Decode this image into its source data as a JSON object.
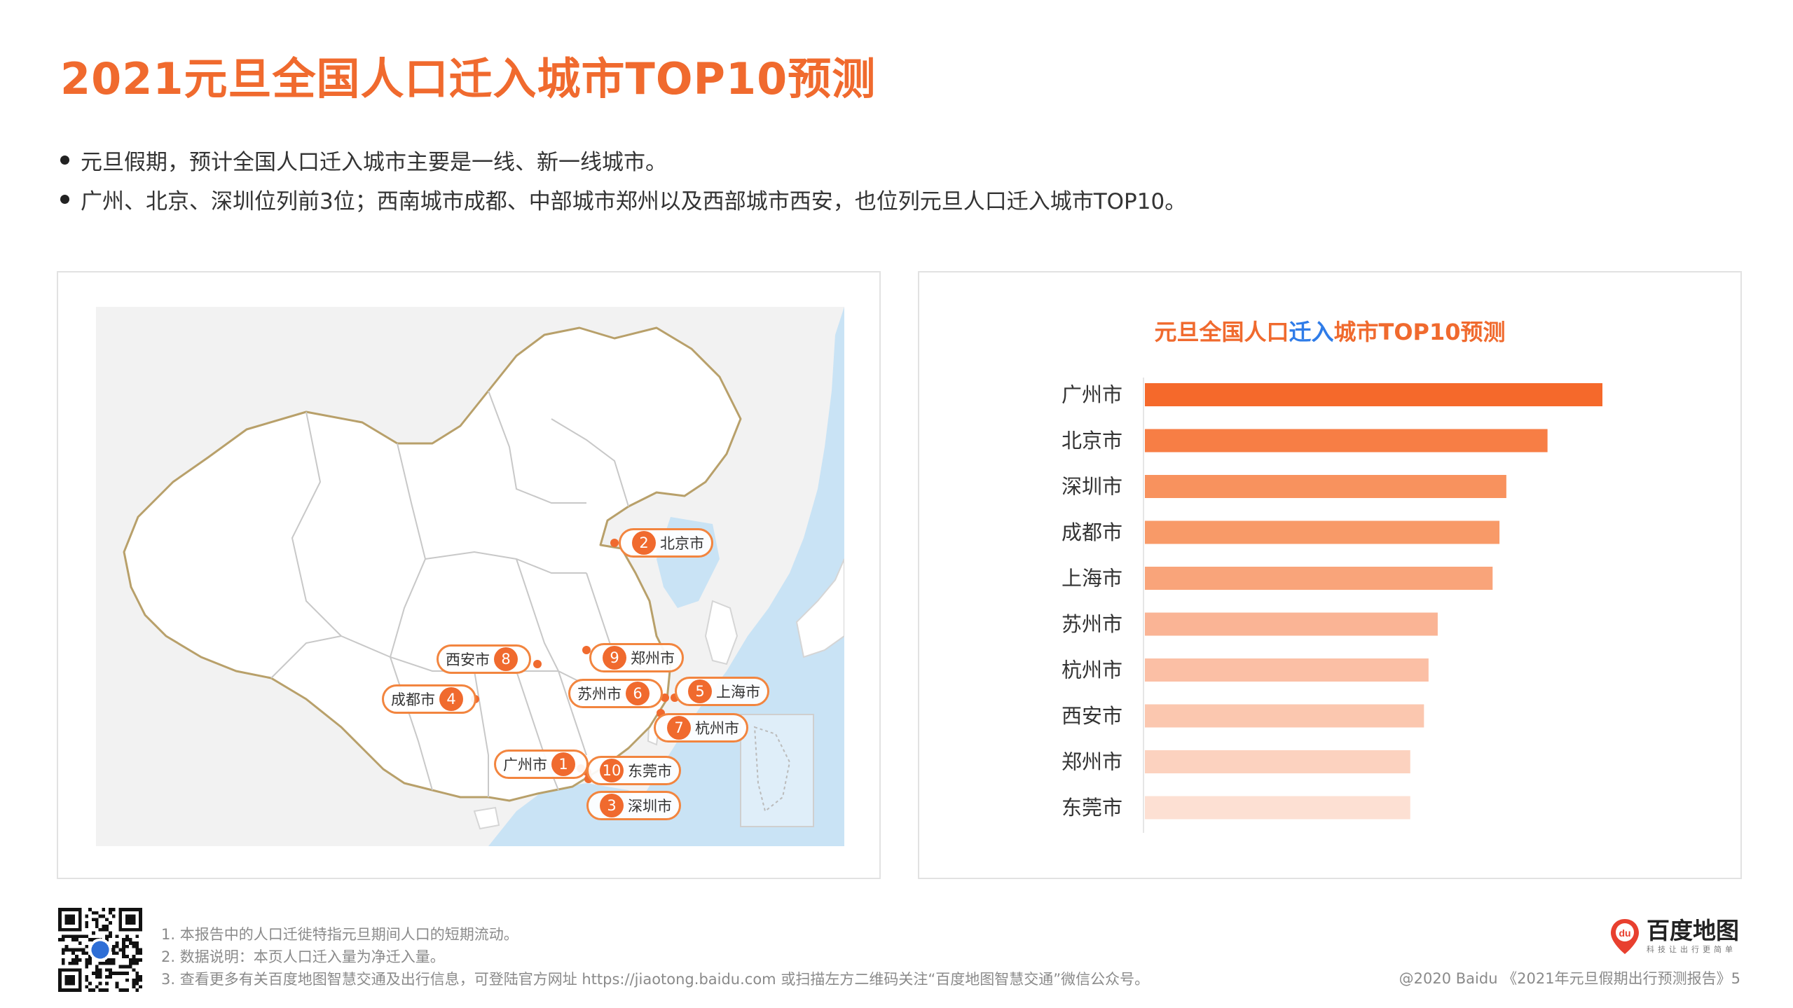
{
  "title": "2021元旦全国人口迁入城市TOP10预测",
  "bullets": [
    "元旦假期，预计全国人口迁入城市主要是一线、新一线城市。",
    "广州、北京、深圳位列前3位；西南城市成都、中部城市郑州以及西部城市西安，也位列元旦人口迁入城市TOP10。"
  ],
  "map": {
    "pins": [
      {
        "rank": "1",
        "city": "广州市"
      },
      {
        "rank": "2",
        "city": "北京市"
      },
      {
        "rank": "3",
        "city": "深圳市"
      },
      {
        "rank": "4",
        "city": "成都市"
      },
      {
        "rank": "5",
        "city": "上海市"
      },
      {
        "rank": "6",
        "city": "苏州市"
      },
      {
        "rank": "7",
        "city": "杭州市"
      },
      {
        "rank": "8",
        "city": "西安市"
      },
      {
        "rank": "9",
        "city": "郑州市"
      },
      {
        "rank": "10",
        "city": "东莞市"
      }
    ],
    "land_color": "#ffffff",
    "sea_color": "#c9e3f5",
    "accent_color": "#f06a2e"
  },
  "chart_title_parts": {
    "before": "元旦全国人口",
    "highlight": "迁入",
    "after": "城市TOP10预测"
  },
  "chart_data": {
    "type": "bar",
    "orientation": "horizontal",
    "title": "元旦全国人口迁入城市TOP10预测",
    "categories": [
      "广州市",
      "北京市",
      "深圳市",
      "成都市",
      "上海市",
      "苏州市",
      "杭州市",
      "西安市",
      "郑州市",
      "东莞市"
    ],
    "values": [
      100,
      88,
      79,
      77.5,
      76,
      64,
      62,
      61,
      58,
      58
    ],
    "value_note": "no axis or value labels shown; bar lengths are relative",
    "colors": [
      "#f5692b",
      "#f77e45",
      "#f8925e",
      "#f89a68",
      "#f9a47a",
      "#fab495",
      "#fbbfa5",
      "#fbc7af",
      "#fcd2bf",
      "#fde0d3"
    ],
    "grid": false,
    "legend": "none"
  },
  "footer": {
    "notes": [
      "1. 本报告中的人口迁徙特指元旦期间人口的短期流动。",
      "2. 数据说明：本页人口迁入量为净迁入量。",
      "3. 查看更多有关百度地图智慧交通及出行信息，可登陆官方网址 https://jiaotong.baidu.com 或扫描左方二维码关注“百度地图智慧交通”微信公众号。"
    ],
    "copyright": "@2020 Baidu 《2021年元旦假期出行预测报告》5",
    "logo_text": "百度地图",
    "logo_sub": "科技让出行更简单",
    "logo_icon_text": "du"
  }
}
